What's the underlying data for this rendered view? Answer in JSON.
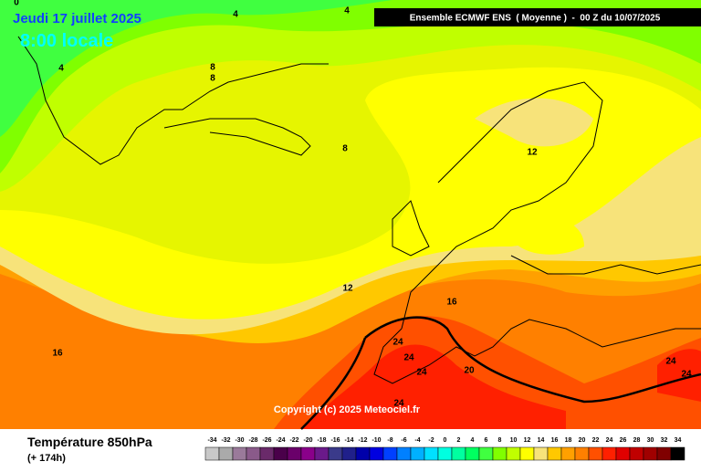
{
  "header": {
    "date": "Jeudi 17 juillet 2025",
    "time": "8:00 locale",
    "model": "Ensemble ECMWF ENS  ( Moyenne )  -  00 Z du 10/07/2025"
  },
  "copyright": "Copyright (c) 2025 Meteociel.fr",
  "map_labels": [
    "0",
    "4",
    "4",
    "4",
    "8",
    "8",
    "8",
    "12",
    "12",
    "16",
    "16",
    "24",
    "24",
    "24",
    "20",
    "24",
    "24",
    "24"
  ],
  "footer": {
    "title": "Température 850hPa",
    "lead": "(+ 174h)"
  },
  "scale": [
    {
      "value": -34,
      "color": "#c8c8c8"
    },
    {
      "value": -32,
      "color": "#aaaaaa"
    },
    {
      "value": -30,
      "color": "#9a7a9a"
    },
    {
      "value": -28,
      "color": "#8a5a8a"
    },
    {
      "value": -26,
      "color": "#6a2a6a"
    },
    {
      "value": -24,
      "color": "#4a004a"
    },
    {
      "value": -22,
      "color": "#6a006a"
    },
    {
      "value": -20,
      "color": "#8a008a"
    },
    {
      "value": -18,
      "color": "#6a1a8a"
    },
    {
      "value": -16,
      "color": "#3a3a8a"
    },
    {
      "value": -14,
      "color": "#20208a"
    },
    {
      "value": -12,
      "color": "#0000aa"
    },
    {
      "value": -10,
      "color": "#0000e0"
    },
    {
      "value": -8,
      "color": "#0040ff"
    },
    {
      "value": -6,
      "color": "#0080ff"
    },
    {
      "value": -4,
      "color": "#00b0ff"
    },
    {
      "value": -2,
      "color": "#00e0ff"
    },
    {
      "value": 0,
      "color": "#00ffe0"
    },
    {
      "value": 2,
      "color": "#00ffa0"
    },
    {
      "value": 4,
      "color": "#00ff60"
    },
    {
      "value": 6,
      "color": "#40ff40"
    },
    {
      "value": 8,
      "color": "#80ff00"
    },
    {
      "value": 10,
      "color": "#c0ff00"
    },
    {
      "value": 12,
      "color": "#ffff00"
    },
    {
      "value": 14,
      "color": "#f7e37a"
    },
    {
      "value": 16,
      "color": "#ffc800"
    },
    {
      "value": 18,
      "color": "#ffa000"
    },
    {
      "value": 20,
      "color": "#ff8000"
    },
    {
      "value": 22,
      "color": "#ff5000"
    },
    {
      "value": 24,
      "color": "#ff2000"
    },
    {
      "value": 26,
      "color": "#e00000"
    },
    {
      "value": 28,
      "color": "#c00000"
    },
    {
      "value": 30,
      "color": "#a00000"
    },
    {
      "value": 32,
      "color": "#800000"
    },
    {
      "value": 34,
      "color": "#000000"
    }
  ]
}
